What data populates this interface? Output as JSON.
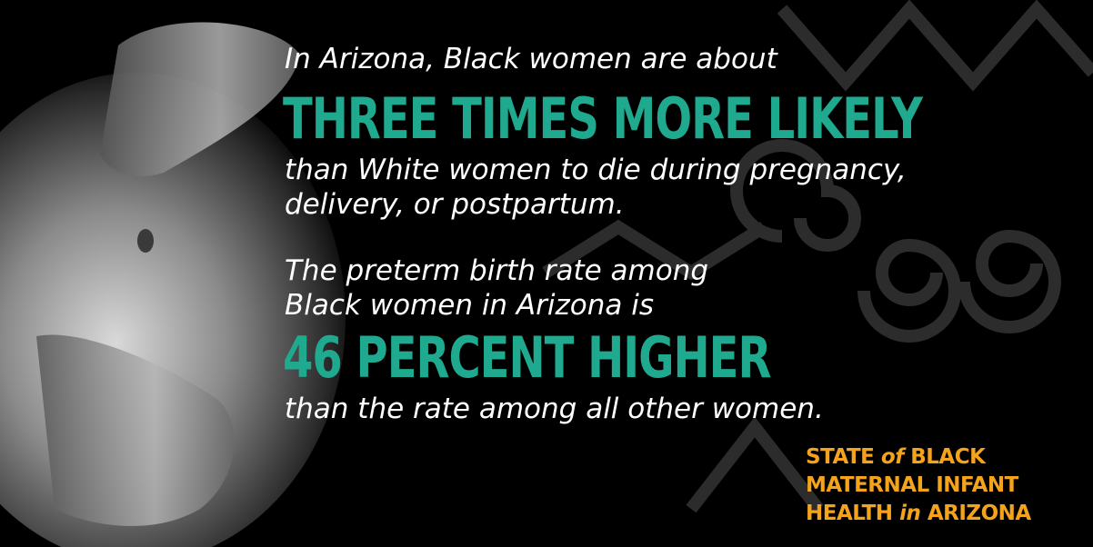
{
  "statements": [
    {
      "intro": [
        "In Arizona, Black women are about"
      ],
      "highlight": "THREE TIMES MORE LIKELY",
      "detail": [
        "than White women to die during pregnancy,",
        "delivery, or postpartum."
      ]
    },
    {
      "intro": [
        "The preterm birth rate among",
        "Black women in Arizona is"
      ],
      "highlight": "46 PERCENT HIGHER",
      "detail": [
        "than the rate among all other women."
      ]
    }
  ],
  "logo": {
    "lines": [
      [
        "STATE",
        "of",
        "BLACK"
      ],
      [
        "MATERNAL INFANT"
      ],
      [
        "HEALTH",
        "in",
        "ARIZONA"
      ]
    ]
  }
}
